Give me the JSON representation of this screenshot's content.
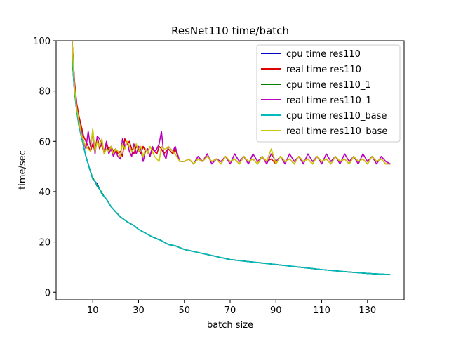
{
  "chart_data": {
    "type": "line",
    "title": "ResNet110 time/batch",
    "xlabel": "batch size",
    "ylabel": "time/sec",
    "xlim": [
      -6,
      146
    ],
    "ylim": [
      -3,
      100
    ],
    "xticks": [
      10,
      30,
      50,
      70,
      90,
      110,
      130
    ],
    "yticks": [
      0,
      20,
      40,
      60,
      80,
      100
    ],
    "grid": false,
    "legend_position": "top-right",
    "series": [
      {
        "name": "cpu time res110",
        "color": "#0000cc",
        "x": [
          1,
          2,
          3,
          4,
          5,
          6,
          7,
          8,
          9,
          10,
          11,
          12,
          13,
          14,
          15,
          16,
          18,
          20,
          22,
          25,
          28,
          30,
          33,
          36,
          40,
          43,
          46,
          50,
          55,
          60,
          65,
          70,
          75,
          80,
          90,
          100,
          110,
          120,
          130,
          140
        ],
        "y": [
          94,
          80,
          72,
          66,
          62,
          58,
          54,
          51,
          48,
          45,
          44,
          43,
          41,
          39,
          38,
          37,
          34,
          32,
          30,
          28,
          26.5,
          25,
          23.5,
          22,
          20.5,
          19,
          18.5,
          17,
          16,
          15,
          14,
          13,
          12.5,
          12,
          11,
          10,
          9,
          8.2,
          7.5,
          7
        ]
      },
      {
        "name": "real time res110",
        "color": "#dd0000",
        "x": [
          1,
          2,
          3,
          4,
          5,
          6,
          7,
          8,
          9,
          10,
          11,
          12,
          13,
          14,
          15,
          16,
          17,
          18,
          19,
          20,
          21,
          22,
          23,
          24,
          25,
          26,
          27,
          28,
          29,
          30,
          31,
          32,
          33,
          34,
          35,
          36,
          37,
          38,
          39,
          40,
          41,
          42,
          43,
          44,
          45,
          46,
          48,
          50,
          52,
          54,
          56,
          58,
          60,
          62,
          64,
          66,
          68,
          70,
          72,
          74,
          76,
          78,
          80,
          82,
          84,
          86,
          88,
          90,
          92,
          94,
          96,
          98,
          100,
          102,
          104,
          106,
          108,
          110,
          112,
          114,
          116,
          118,
          120,
          122,
          124,
          126,
          128,
          130,
          132,
          134,
          136,
          138,
          140
        ],
        "y": [
          100,
          84,
          75,
          70,
          66,
          62,
          60,
          58,
          56,
          59,
          56,
          62,
          57,
          60,
          55,
          59,
          57,
          58,
          56,
          57,
          55,
          56,
          54,
          61,
          59,
          60,
          57,
          55,
          58,
          57,
          55,
          58,
          56,
          57,
          54,
          57,
          56,
          55,
          58,
          57,
          55,
          56,
          57,
          56,
          55,
          57,
          52,
          52,
          53,
          51,
          53,
          52,
          54,
          52,
          53,
          51,
          54,
          52,
          53,
          51,
          54,
          52,
          53,
          51,
          54,
          52,
          53,
          51,
          54,
          52,
          53,
          51,
          54,
          52,
          53,
          51,
          54,
          52,
          53,
          51,
          54,
          52,
          53,
          51,
          54,
          52,
          53,
          51,
          54,
          52,
          53,
          51,
          51
        ]
      },
      {
        "name": "cpu time res110_1",
        "color": "#008000",
        "x": [
          1,
          2,
          3,
          4,
          5,
          6,
          7,
          8,
          9,
          10,
          11,
          12,
          13,
          14,
          15,
          16,
          18,
          20,
          22,
          25,
          28,
          30,
          33,
          36,
          40,
          43,
          46,
          50,
          55,
          60,
          65,
          70,
          75,
          80,
          90,
          100,
          110,
          120,
          130,
          140
        ],
        "y": [
          94,
          80,
          72,
          66,
          62,
          58,
          54,
          51,
          48,
          45.5,
          44,
          42,
          41,
          39.5,
          38,
          37,
          34,
          32,
          30,
          28,
          26.5,
          25,
          23.5,
          22,
          20.5,
          19,
          18.5,
          17,
          16,
          15,
          14,
          13,
          12.5,
          12,
          11,
          10,
          9,
          8.2,
          7.5,
          7
        ]
      },
      {
        "name": "real time res110_1",
        "color": "#bb00bb",
        "x": [
          1,
          2,
          3,
          4,
          5,
          6,
          7,
          8,
          9,
          10,
          11,
          12,
          13,
          14,
          15,
          16,
          17,
          18,
          19,
          20,
          21,
          22,
          23,
          24,
          25,
          26,
          27,
          28,
          29,
          30,
          31,
          32,
          33,
          34,
          35,
          36,
          37,
          38,
          39,
          40,
          41,
          42,
          43,
          44,
          45,
          46,
          48,
          50,
          52,
          54,
          56,
          58,
          60,
          62,
          64,
          66,
          68,
          70,
          72,
          74,
          76,
          78,
          80,
          82,
          84,
          86,
          88,
          90,
          92,
          94,
          96,
          98,
          100,
          102,
          104,
          106,
          108,
          110,
          112,
          114,
          116,
          118,
          120,
          122,
          124,
          126,
          128,
          130,
          132,
          134,
          136,
          138,
          140
        ],
        "y": [
          100,
          84,
          74,
          68,
          64,
          60,
          57,
          64,
          58,
          63,
          55,
          62,
          61,
          58,
          56,
          60,
          55,
          57,
          54,
          56,
          54,
          53,
          61,
          58,
          60,
          56,
          54,
          59,
          55,
          58,
          57,
          52,
          56,
          57,
          54,
          58,
          56,
          57,
          59,
          64,
          55,
          53,
          58,
          57,
          56,
          58,
          52,
          52,
          53,
          51,
          54,
          52,
          55,
          51,
          53,
          52,
          54,
          51,
          55,
          52,
          54,
          51,
          55,
          52,
          54,
          51,
          55,
          52,
          54,
          51,
          55,
          52,
          54,
          51,
          55,
          52,
          54,
          51,
          55,
          52,
          54,
          51,
          55,
          52,
          54,
          51,
          55,
          52,
          54,
          51,
          54,
          52,
          51
        ]
      },
      {
        "name": "cpu time res110_base",
        "color": "#00bbbb",
        "x": [
          1,
          2,
          3,
          4,
          5,
          6,
          7,
          8,
          9,
          10,
          11,
          12,
          13,
          14,
          15,
          16,
          18,
          20,
          22,
          25,
          28,
          30,
          33,
          36,
          40,
          43,
          46,
          50,
          55,
          60,
          65,
          70,
          75,
          80,
          90,
          100,
          110,
          120,
          130,
          140
        ],
        "y": [
          94,
          80,
          72,
          66,
          62,
          58,
          54,
          51,
          48,
          45,
          44,
          42.5,
          41,
          39,
          38,
          37,
          34,
          32,
          30,
          28,
          26.5,
          25,
          23.5,
          22,
          20.5,
          19,
          18.5,
          17,
          16,
          15,
          14,
          13,
          12.5,
          12,
          11,
          10,
          9,
          8.2,
          7.5,
          7
        ]
      },
      {
        "name": "real time res110_base",
        "color": "#c8c800",
        "x": [
          1,
          2,
          3,
          4,
          5,
          6,
          7,
          8,
          9,
          10,
          11,
          12,
          13,
          14,
          15,
          16,
          17,
          18,
          19,
          20,
          21,
          22,
          23,
          24,
          25,
          26,
          27,
          28,
          29,
          30,
          31,
          32,
          33,
          34,
          35,
          36,
          37,
          38,
          39,
          40,
          41,
          42,
          43,
          44,
          45,
          46,
          48,
          50,
          52,
          54,
          56,
          58,
          60,
          62,
          64,
          66,
          68,
          70,
          72,
          74,
          76,
          78,
          80,
          82,
          84,
          86,
          88,
          90,
          92,
          94,
          96,
          98,
          100,
          102,
          104,
          106,
          108,
          110,
          112,
          114,
          116,
          118,
          120,
          122,
          124,
          126,
          128,
          130,
          132,
          134,
          136,
          138,
          140
        ],
        "y": [
          100,
          82,
          73,
          68,
          63,
          60,
          58,
          57,
          56,
          65,
          56,
          60,
          58,
          61,
          55,
          57,
          56,
          58,
          55,
          57,
          56,
          54,
          59,
          57,
          60,
          58,
          56,
          57,
          59,
          56,
          58,
          54,
          57,
          55,
          58,
          56,
          54,
          53,
          52,
          58,
          57,
          57,
          58,
          57,
          56,
          55,
          52,
          52,
          53,
          51,
          53,
          52,
          54,
          52,
          53,
          51,
          54,
          52,
          53,
          51,
          54,
          52,
          53,
          51,
          54,
          52,
          57,
          51,
          54,
          52,
          53,
          51,
          54,
          52,
          53,
          51,
          54,
          52,
          53,
          51,
          54,
          52,
          53,
          51,
          54,
          52,
          53,
          51,
          54,
          52,
          53,
          51,
          51
        ]
      }
    ]
  }
}
